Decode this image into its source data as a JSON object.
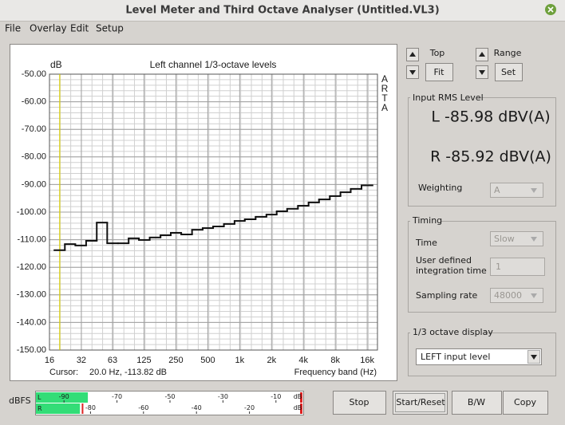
{
  "window": {
    "title": "Level Meter and Third Octave Analyser (Untitled.VL3)"
  },
  "menu": [
    "File",
    "Overlay",
    "Edit",
    "Setup"
  ],
  "chart_data": {
    "type": "step",
    "title": "Left channel 1/3-octave levels",
    "y_label": "dB",
    "x_label": "Frequency band (Hz)",
    "watermark": "ARTA",
    "x": [
      20,
      25,
      31.5,
      40,
      50,
      63,
      80,
      100,
      125,
      160,
      200,
      250,
      315,
      400,
      500,
      630,
      800,
      1000,
      1250,
      1600,
      2000,
      2500,
      3150,
      4000,
      5000,
      6300,
      8000,
      10000,
      12500,
      16000
    ],
    "values": [
      -113.8,
      -111.6,
      -112.1,
      -110.4,
      -103.8,
      -111.3,
      -111.3,
      -109.5,
      -110.1,
      -109.2,
      -108.4,
      -107.5,
      -108.1,
      -106.4,
      -105.8,
      -105.2,
      -104.3,
      -103.2,
      -102.6,
      -101.7,
      -100.9,
      -99.7,
      -98.8,
      -97.7,
      -96.5,
      -95.4,
      -94.2,
      -92.8,
      -91.6,
      -90.3
    ],
    "color": "#111111",
    "xlim": [
      16,
      20000
    ],
    "xlog": true,
    "xticks": [
      16,
      32,
      63,
      125,
      250,
      500,
      {
        "value": 1000,
        "label": "1k"
      },
      {
        "value": 2000,
        "label": "2k"
      },
      {
        "value": 4000,
        "label": "4k"
      },
      {
        "value": 8000,
        "label": "8k"
      },
      {
        "value": 16000,
        "label": "16k"
      }
    ],
    "ylim": [
      -150,
      -50
    ],
    "yticks": [
      {
        "value": -50,
        "label": "-50.00"
      },
      {
        "value": -60,
        "label": "-60.00"
      },
      {
        "value": -70,
        "label": "-70.00"
      },
      {
        "value": -80,
        "label": "-80.00"
      },
      {
        "value": -90,
        "label": "-90.00"
      },
      {
        "value": -100,
        "label": "-100.00"
      },
      {
        "value": -110,
        "label": "-110.00"
      },
      {
        "value": -120,
        "label": "-120.00"
      },
      {
        "value": -130,
        "label": "-130.00"
      },
      {
        "value": -140,
        "label": "-140.00"
      },
      {
        "value": -150,
        "label": "-150.00"
      }
    ],
    "grid": true,
    "cursor": {
      "label": "Cursor:",
      "text": "20.0 Hz, -113.82 dB",
      "x": 20,
      "color": "#d8cc00"
    }
  },
  "controls": {
    "top_label": "Top",
    "fit_button": "Fit",
    "range_label": "Range",
    "set_button": "Set"
  },
  "input_rms_level": {
    "title": "Input RMS Level",
    "left": "L -85.98 dBV(A)",
    "right": "R -85.92 dBV(A)",
    "weighting_label": "Weighting",
    "weighting_value": "A"
  },
  "timing": {
    "title": "Timing",
    "time_label": "Time",
    "time_value": "Slow",
    "integration_label": [
      "User defined",
      "integration time"
    ],
    "integration_value": "1",
    "sampling_rate_label": "Sampling rate",
    "sampling_rate_value": "48000"
  },
  "octave_display": {
    "title": "1/3 octave display",
    "value": "LEFT input level"
  },
  "level_meter": {
    "label": "dBFS",
    "unit": "dB",
    "xlim": [
      -100,
      0
    ],
    "color": "#33dd77",
    "channels": [
      {
        "name": "L",
        "level": -81,
        "ticks": [
          -90,
          -70,
          -50,
          -30,
          -10
        ]
      },
      {
        "name": "R",
        "level": -84,
        "peak": -83,
        "ticks": [
          -80,
          -60,
          -40,
          -20
        ]
      }
    ]
  },
  "buttons": [
    "Stop",
    "Start/Reset",
    "B/W",
    "Copy"
  ]
}
